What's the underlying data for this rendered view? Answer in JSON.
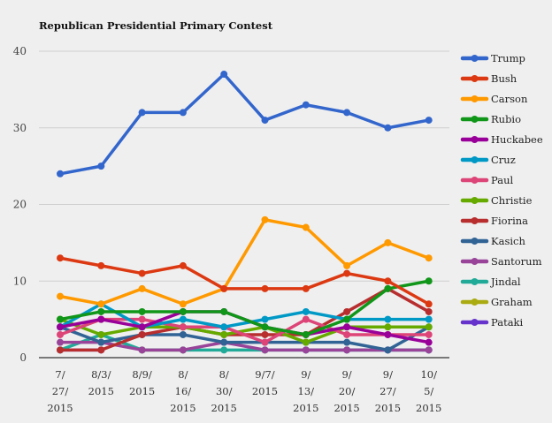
{
  "chart_data": {
    "type": "line",
    "title": "Republican Presidential Primary Contest",
    "xlabel": "",
    "ylabel": "",
    "ylim": [
      0,
      40
    ],
    "yticks": [
      0,
      10,
      20,
      30,
      40
    ],
    "grid": true,
    "legend_position": "right",
    "x": [
      [
        "7/",
        "27/",
        "2015"
      ],
      [
        "8/3/",
        "2015"
      ],
      [
        "8/9/",
        "2015"
      ],
      [
        "8/",
        "16/",
        "2015"
      ],
      [
        "8/",
        "30/",
        "2015"
      ],
      [
        "9/7/",
        "2015"
      ],
      [
        "9/",
        "13/",
        "2015"
      ],
      [
        "9/",
        "20/",
        "2015"
      ],
      [
        "9/",
        "27/",
        "2015"
      ],
      [
        "10/",
        "5/",
        "2015"
      ]
    ],
    "series": [
      {
        "name": "Trump",
        "color": "#3366cc",
        "values": [
          24,
          25,
          32,
          32,
          37,
          31,
          33,
          32,
          30,
          31
        ]
      },
      {
        "name": "Bush",
        "color": "#dc3912",
        "values": [
          13,
          12,
          11,
          12,
          9,
          9,
          9,
          11,
          10,
          7
        ]
      },
      {
        "name": "Carson",
        "color": "#ff9900",
        "values": [
          8,
          7,
          9,
          7,
          9,
          18,
          17,
          12,
          15,
          13
        ]
      },
      {
        "name": "Rubio",
        "color": "#109618",
        "values": [
          5,
          6,
          6,
          6,
          6,
          4,
          3,
          5,
          9,
          10
        ]
      },
      {
        "name": "Huckabee",
        "color": "#990099",
        "values": [
          4,
          5,
          4,
          6,
          6,
          4,
          3,
          4,
          3,
          2
        ]
      },
      {
        "name": "Cruz",
        "color": "#0099c6",
        "values": [
          4,
          7,
          4,
          5,
          4,
          5,
          6,
          5,
          5,
          5
        ]
      },
      {
        "name": "Paul",
        "color": "#dd4477",
        "values": [
          3,
          5,
          5,
          4,
          4,
          2,
          5,
          3,
          3,
          3
        ]
      },
      {
        "name": "Christie",
        "color": "#66aa00",
        "values": [
          5,
          3,
          4,
          4,
          3,
          4,
          2,
          4,
          4,
          4
        ]
      },
      {
        "name": "Fiorina",
        "color": "#b82e2e",
        "values": [
          1,
          1,
          3,
          4,
          3,
          3,
          3,
          6,
          9,
          6
        ]
      },
      {
        "name": "Kasich",
        "color": "#316395",
        "values": [
          4,
          2,
          3,
          3,
          2,
          2,
          2,
          2,
          1,
          4
        ]
      },
      {
        "name": "Santorum",
        "color": "#994499",
        "values": [
          2,
          2,
          1,
          1,
          2,
          1,
          1,
          1,
          1,
          1
        ]
      },
      {
        "name": "Jindal",
        "color": "#22aa99",
        "values": [
          1,
          3,
          1,
          1,
          1,
          1,
          1,
          1,
          1,
          1
        ]
      },
      {
        "name": "Graham",
        "color": "#aaaa11",
        "values": [
          null,
          null,
          1,
          1,
          null,
          1,
          null,
          null,
          null,
          null
        ]
      },
      {
        "name": "Pataki",
        "color": "#6633cc",
        "values": [
          1,
          1,
          null,
          null,
          null,
          null,
          1,
          1,
          1,
          1
        ]
      }
    ]
  }
}
